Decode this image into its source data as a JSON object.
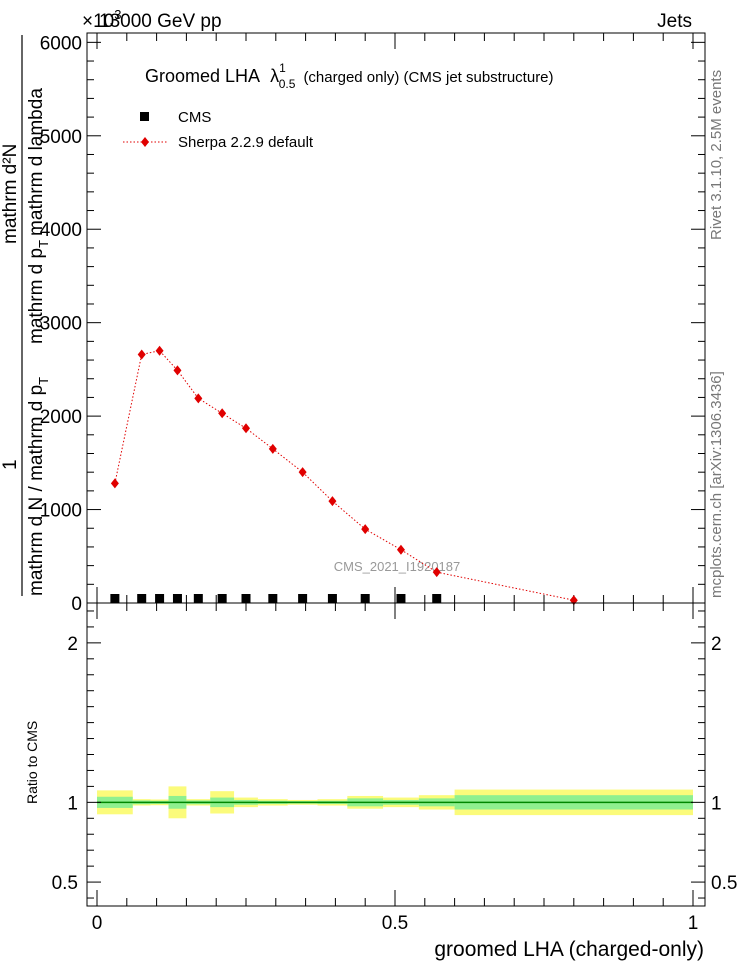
{
  "header": {
    "beam": "13000 GeV pp",
    "process": "Jets",
    "exponent_prefix": "×10",
    "exponent_value": "3"
  },
  "side_labels": {
    "rivet": "Rivet 3.1.10,  2.5M events",
    "mcplots": "mcplots.cern.ch [arXiv:1306.3436]"
  },
  "watermark": "CMS_2021_I1920187",
  "colors": {
    "sherpa": "#e00000",
    "cms": "#000000",
    "band_inner": "#8ff08f",
    "band_outer": "#fbfb7b",
    "ratio_line": "#008800"
  },
  "chart_data": [
    {
      "type": "scatter",
      "title_main": "Groomed LHA",
      "title_lambda": "λ",
      "title_sup": "1",
      "title_sub": "0.5",
      "title_rest": "(charged only) (CMS jet substructure)",
      "ylabel_parts": [
        "1",
        "mathrm d N / mathrm d p",
        "T",
        "mathrm d²N",
        "mathrm d p",
        "T",
        "mathrm d lambda"
      ],
      "xlim": [
        0,
        1
      ],
      "ylim": [
        0,
        6100
      ],
      "y_ticks": [
        {
          "value": 0,
          "label": "0"
        },
        {
          "value": 1000,
          "label": "1000"
        },
        {
          "value": 2000,
          "label": "2000"
        },
        {
          "value": 3000,
          "label": "3000"
        },
        {
          "value": 4000,
          "label": "4000"
        },
        {
          "value": 5000,
          "label": "5000"
        },
        {
          "value": 6000,
          "label": "6000"
        }
      ],
      "legend_position": "top-left",
      "series": [
        {
          "name": "CMS",
          "style": "square",
          "x": [
            0.03,
            0.075,
            0.105,
            0.135,
            0.17,
            0.21,
            0.25,
            0.295,
            0.345,
            0.395,
            0.45,
            0.51,
            0.57
          ],
          "y": [
            0,
            0,
            0,
            0,
            0,
            0,
            0,
            0,
            0,
            0,
            0,
            0,
            0
          ]
        },
        {
          "name": "Sherpa 2.2.9 default",
          "style": "diamond-dotted",
          "x": [
            0.03,
            0.075,
            0.105,
            0.135,
            0.17,
            0.21,
            0.25,
            0.295,
            0.345,
            0.395,
            0.45,
            0.51,
            0.57,
            0.8
          ],
          "y": [
            1280,
            2660,
            2700,
            2490,
            2190,
            2030,
            1870,
            1650,
            1400,
            1090,
            790,
            570,
            330,
            30
          ]
        }
      ]
    },
    {
      "type": "line",
      "ylabel": "Ratio to CMS",
      "xlabel": "groomed LHA (charged-only)",
      "xlim": [
        0,
        1
      ],
      "ylim": [
        0.35,
        2.25
      ],
      "y_ticks": [
        {
          "value": 0.5,
          "label": "0.5"
        },
        {
          "value": 1,
          "label": "1"
        },
        {
          "value": 2,
          "label": "2"
        }
      ],
      "x_ticks": [
        {
          "value": 0,
          "label": "0"
        },
        {
          "value": 0.5,
          "label": "0.5"
        },
        {
          "value": 1,
          "label": "1"
        }
      ],
      "bins": [
        {
          "lo": 0.0,
          "hi": 0.06,
          "inner": 0.035,
          "outer": 0.075
        },
        {
          "lo": 0.06,
          "hi": 0.09,
          "inner": 0.012,
          "outer": 0.02
        },
        {
          "lo": 0.09,
          "hi": 0.12,
          "inner": 0.01,
          "outer": 0.018
        },
        {
          "lo": 0.12,
          "hi": 0.15,
          "inner": 0.04,
          "outer": 0.1
        },
        {
          "lo": 0.15,
          "hi": 0.19,
          "inner": 0.012,
          "outer": 0.02
        },
        {
          "lo": 0.19,
          "hi": 0.23,
          "inner": 0.03,
          "outer": 0.07
        },
        {
          "lo": 0.23,
          "hi": 0.27,
          "inner": 0.015,
          "outer": 0.03
        },
        {
          "lo": 0.27,
          "hi": 0.32,
          "inner": 0.01,
          "outer": 0.02
        },
        {
          "lo": 0.32,
          "hi": 0.37,
          "inner": 0.008,
          "outer": 0.015
        },
        {
          "lo": 0.37,
          "hi": 0.42,
          "inner": 0.01,
          "outer": 0.02
        },
        {
          "lo": 0.42,
          "hi": 0.48,
          "inner": 0.025,
          "outer": 0.04
        },
        {
          "lo": 0.48,
          "hi": 0.54,
          "inner": 0.015,
          "outer": 0.03
        },
        {
          "lo": 0.54,
          "hi": 0.6,
          "inner": 0.025,
          "outer": 0.045
        },
        {
          "lo": 0.6,
          "hi": 1.0,
          "inner": 0.045,
          "outer": 0.08
        }
      ]
    }
  ]
}
